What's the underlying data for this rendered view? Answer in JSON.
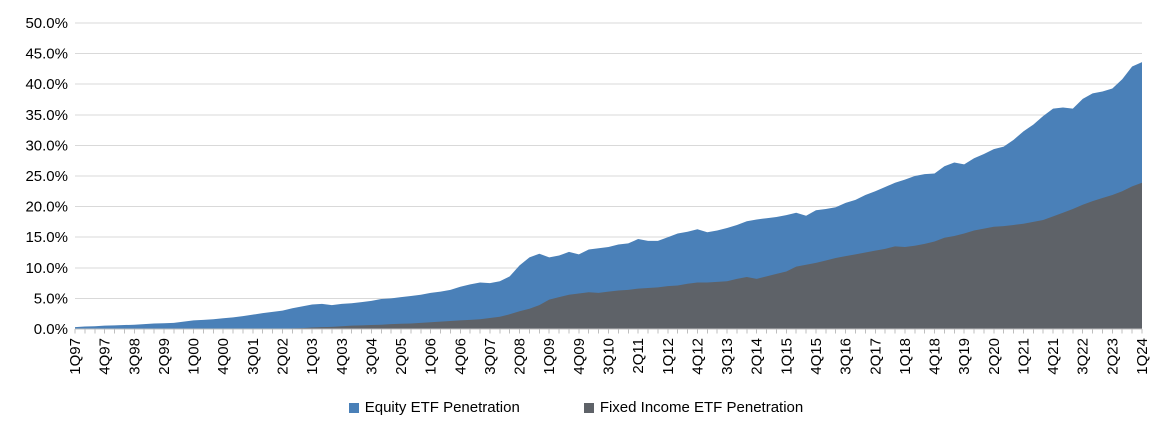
{
  "chart_data": {
    "type": "area",
    "title": "",
    "xlabel": "",
    "ylabel": "",
    "y_min": 0,
    "y_max": 50,
    "y_tick_step": 5,
    "y_tick_labels": [
      "0.0%",
      "5.0%",
      "10.0%",
      "15.0%",
      "20.0%",
      "25.0%",
      "30.0%",
      "35.0%",
      "40.0%",
      "45.0%",
      "50.0%"
    ],
    "x_tick_labels": [
      "1Q97",
      "4Q97",
      "3Q98",
      "2Q99",
      "1Q00",
      "4Q00",
      "3Q01",
      "2Q02",
      "1Q03",
      "4Q03",
      "3Q04",
      "2Q05",
      "1Q06",
      "4Q06",
      "3Q07",
      "2Q08",
      "1Q09",
      "4Q09",
      "3Q10",
      "2Q11",
      "1Q12",
      "4Q12",
      "3Q13",
      "2Q14",
      "1Q15",
      "4Q15",
      "3Q16",
      "2Q17",
      "1Q18",
      "4Q18",
      "3Q19",
      "2Q20",
      "1Q21",
      "4Q21",
      "3Q22",
      "2Q23",
      "1Q24"
    ],
    "x_label_every": 3,
    "grid": true,
    "legend_position": "bottom",
    "series": [
      {
        "name": "Equity ETF Penetration",
        "color": "#4A80B8",
        "values": [
          0.3,
          0.4,
          0.45,
          0.55,
          0.6,
          0.65,
          0.7,
          0.8,
          0.9,
          0.95,
          1.0,
          1.2,
          1.4,
          1.5,
          1.6,
          1.75,
          1.9,
          2.1,
          2.35,
          2.6,
          2.8,
          3.0,
          3.4,
          3.7,
          4.0,
          4.1,
          3.9,
          4.1,
          4.2,
          4.4,
          4.6,
          4.9,
          5.0,
          5.2,
          5.4,
          5.6,
          5.9,
          6.1,
          6.4,
          6.9,
          7.3,
          7.6,
          7.5,
          7.8,
          8.6,
          10.4,
          11.7,
          12.3,
          11.7,
          12.0,
          12.6,
          12.2,
          13.0,
          13.2,
          13.4,
          13.8,
          14.0,
          14.7,
          14.4,
          14.4,
          15.0,
          15.6,
          15.9,
          16.3,
          15.8,
          16.1,
          16.5,
          17.0,
          17.6,
          17.9,
          18.1,
          18.3,
          18.6,
          19.0,
          18.5,
          19.4,
          19.6,
          19.9,
          20.6,
          21.1,
          21.9,
          22.5,
          23.2,
          23.9,
          24.4,
          25.0,
          25.3,
          25.4,
          26.6,
          27.2,
          26.9,
          27.9,
          28.6,
          29.4,
          29.8,
          30.9,
          32.3,
          33.4,
          34.8,
          36.0,
          36.2,
          36.0,
          37.6,
          38.5,
          38.8,
          39.3,
          40.8,
          42.9,
          43.6
        ]
      },
      {
        "name": "Fixed Income ETF Penetration",
        "color": "#5E6268",
        "values": [
          0,
          0,
          0,
          0,
          0,
          0,
          0,
          0,
          0,
          0,
          0,
          0,
          0,
          0,
          0,
          0,
          0,
          0,
          0,
          0,
          0,
          0.05,
          0.1,
          0.15,
          0.25,
          0.3,
          0.35,
          0.45,
          0.55,
          0.6,
          0.65,
          0.7,
          0.8,
          0.85,
          0.9,
          1.0,
          1.1,
          1.2,
          1.3,
          1.4,
          1.5,
          1.6,
          1.8,
          2.0,
          2.4,
          2.9,
          3.3,
          3.9,
          4.8,
          5.2,
          5.6,
          5.8,
          6.0,
          5.9,
          6.1,
          6.3,
          6.4,
          6.6,
          6.7,
          6.8,
          7.0,
          7.1,
          7.4,
          7.6,
          7.6,
          7.7,
          7.8,
          8.2,
          8.5,
          8.2,
          8.6,
          9.0,
          9.4,
          10.2,
          10.5,
          10.8,
          11.2,
          11.6,
          11.9,
          12.2,
          12.5,
          12.8,
          13.1,
          13.5,
          13.4,
          13.6,
          13.9,
          14.3,
          14.9,
          15.2,
          15.6,
          16.1,
          16.4,
          16.7,
          16.8,
          17.0,
          17.2,
          17.5,
          17.8,
          18.4,
          19.0,
          19.6,
          20.3,
          20.9,
          21.4,
          21.9,
          22.5,
          23.3,
          23.9
        ]
      }
    ]
  },
  "colors": {
    "gridline": "#D9D9D9",
    "axis": "#BFBFBF",
    "text": "#000000",
    "background": "#FFFFFF"
  }
}
